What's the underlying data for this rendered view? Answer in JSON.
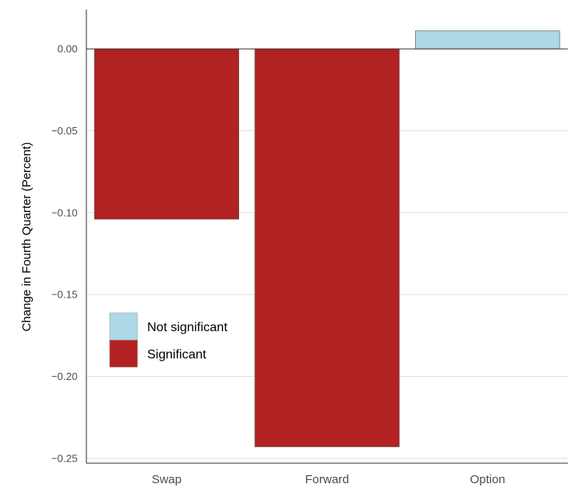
{
  "chart_data": {
    "type": "bar",
    "title": "",
    "xlabel": "",
    "ylabel": "Change in Fourth Quarter (Percent)",
    "categories": [
      "Swap",
      "Forward",
      "Option"
    ],
    "values": [
      -0.104,
      -0.243,
      0.011
    ],
    "significance": [
      "Significant",
      "Significant",
      "Not significant"
    ],
    "ylim": [
      -0.253,
      0.024
    ],
    "yticks": [
      0.0,
      -0.05,
      -0.1,
      -0.15,
      -0.2,
      -0.25
    ],
    "ytick_labels": [
      "0.00",
      "−0.05",
      "−0.10",
      "−0.15",
      "−0.20",
      "−0.25"
    ],
    "grid": "horizontal",
    "legend": {
      "placement": "bottom-left inside",
      "entries": [
        {
          "label": "Not significant",
          "color": "#add8e6"
        },
        {
          "label": "Significant",
          "color": "#b22222"
        }
      ]
    },
    "colors": {
      "Significant": "#b22222",
      "Not significant": "#add8e6",
      "grid": "#e0e0e0",
      "axis": "#333333"
    }
  }
}
